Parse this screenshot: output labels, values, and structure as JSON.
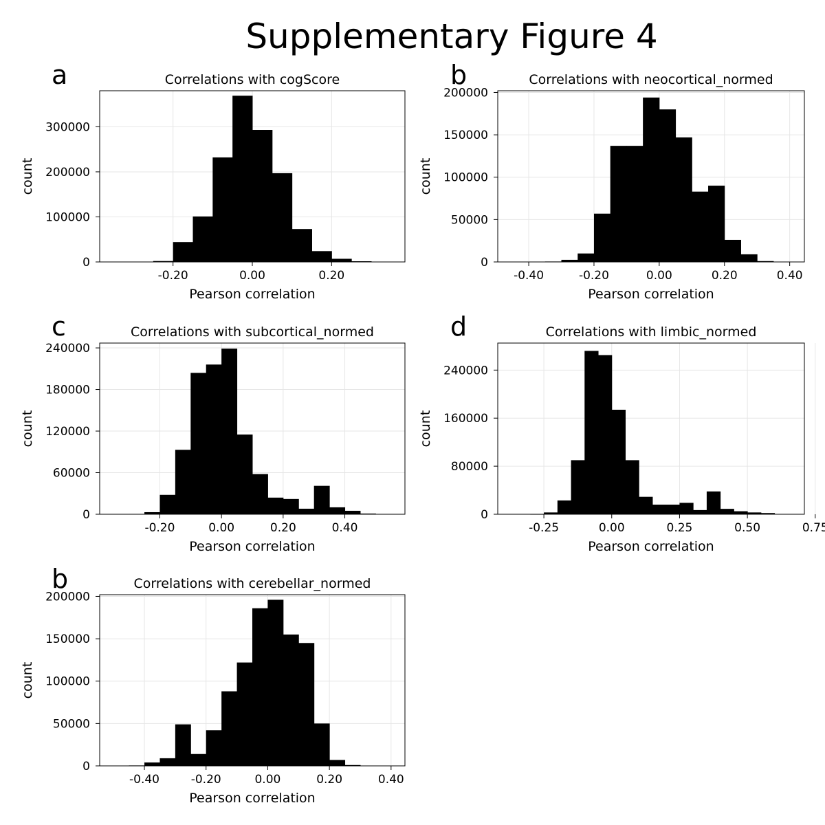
{
  "figure_title": "Supplementary Figure 4",
  "chart_data": [
    {
      "type": "bar",
      "letter": "a",
      "title": "Correlations with cogScore",
      "xlabel": "Pearson correlation",
      "ylabel": "count",
      "xlim": [
        -0.385,
        0.385
      ],
      "ylim": [
        0,
        380000
      ],
      "xticks": [
        -0.2,
        0.0,
        0.2
      ],
      "xtick_labels": [
        "-0.20",
        "0.00",
        "0.20"
      ],
      "yticks": [
        0,
        100000,
        200000,
        300000
      ],
      "ytick_labels": [
        "0",
        "100000",
        "200000",
        "300000"
      ],
      "grid": true,
      "bin_edges": [
        -0.25,
        -0.2,
        -0.15,
        -0.1,
        -0.05,
        0.0,
        0.05,
        0.1,
        0.15,
        0.2,
        0.25,
        0.3
      ],
      "values": [
        2000,
        44000,
        101000,
        232000,
        369000,
        293000,
        197000,
        73000,
        24000,
        7000,
        1500
      ]
    },
    {
      "type": "bar",
      "letter": "b",
      "title": "Correlations with neocortical_normed",
      "xlabel": "Pearson correlation",
      "ylabel": "count",
      "xlim": [
        -0.495,
        0.445
      ],
      "ylim": [
        0,
        202000
      ],
      "xticks": [
        -0.4,
        -0.2,
        0.0,
        0.2,
        0.4
      ],
      "xtick_labels": [
        "-0.40",
        "-0.20",
        "0.00",
        "0.20",
        "0.40"
      ],
      "yticks": [
        0,
        50000,
        100000,
        150000,
        200000
      ],
      "ytick_labels": [
        "0",
        "50000",
        "100000",
        "150000",
        "200000"
      ],
      "grid": true,
      "bin_edges": [
        -0.35,
        -0.3,
        -0.25,
        -0.2,
        -0.15,
        -0.1,
        -0.05,
        0.0,
        0.05,
        0.1,
        0.15,
        0.2,
        0.25,
        0.3,
        0.35
      ],
      "values": [
        500,
        2500,
        10000,
        57000,
        137000,
        137000,
        194000,
        180000,
        147000,
        83000,
        90000,
        26000,
        9000,
        1000
      ]
    },
    {
      "type": "bar",
      "letter": "c",
      "title": "Correlations with subcortical_normed",
      "xlabel": "Pearson correlation",
      "ylabel": "count",
      "xlim": [
        -0.395,
        0.595
      ],
      "ylim": [
        0,
        247000
      ],
      "xticks": [
        -0.2,
        0.0,
        0.2,
        0.4
      ],
      "xtick_labels": [
        "-0.20",
        "0.00",
        "0.20",
        "0.40"
      ],
      "yticks": [
        0,
        60000,
        120000,
        180000,
        240000
      ],
      "ytick_labels": [
        "0",
        "60000",
        "120000",
        "180000",
        "240000"
      ],
      "grid": true,
      "bin_edges": [
        -0.3,
        -0.25,
        -0.2,
        -0.15,
        -0.1,
        -0.05,
        0.0,
        0.05,
        0.1,
        0.15,
        0.2,
        0.25,
        0.3,
        0.35,
        0.4,
        0.45,
        0.5
      ],
      "values": [
        500,
        3000,
        28000,
        93000,
        204000,
        216000,
        239000,
        115000,
        58000,
        24000,
        22000,
        8000,
        41000,
        10000,
        5000,
        1000
      ]
    },
    {
      "type": "bar",
      "letter": "d",
      "title": "Correlations with limbic_normed",
      "xlabel": "Pearson correlation",
      "ylabel": "count",
      "xlim": [
        -0.42,
        0.71
      ],
      "ylim": [
        0,
        285000
      ],
      "xticks": [
        -0.25,
        0.0,
        0.25,
        0.5,
        0.75
      ],
      "xtick_labels": [
        "-0.25",
        "0.00",
        "0.25",
        "0.50",
        "0.75"
      ],
      "yticks": [
        0,
        80000,
        160000,
        240000
      ],
      "ytick_labels": [
        "0",
        "80000",
        "160000",
        "240000"
      ],
      "grid": true,
      "bin_edges": [
        -0.3,
        -0.25,
        -0.2,
        -0.15,
        -0.1,
        -0.05,
        0.0,
        0.05,
        0.1,
        0.15,
        0.2,
        0.25,
        0.3,
        0.35,
        0.4,
        0.45,
        0.5,
        0.55,
        0.6
      ],
      "values": [
        500,
        3000,
        23000,
        90000,
        272000,
        265000,
        174000,
        90000,
        29000,
        16000,
        16000,
        19000,
        7000,
        38000,
        9000,
        5000,
        3000,
        2000
      ]
    },
    {
      "type": "bar",
      "letter": "b",
      "title": "Correlations with cerebellar_normed",
      "xlabel": "Pearson correlation",
      "ylabel": "count",
      "xlim": [
        -0.545,
        0.445
      ],
      "ylim": [
        0,
        202000
      ],
      "xticks": [
        -0.4,
        -0.2,
        0.0,
        0.2,
        0.4
      ],
      "xtick_labels": [
        "-0.40",
        "-0.20",
        "0.00",
        "0.20",
        "0.40"
      ],
      "yticks": [
        0,
        50000,
        100000,
        150000,
        200000
      ],
      "ytick_labels": [
        "0",
        "50000",
        "100000",
        "150000",
        "200000"
      ],
      "grid": true,
      "bin_edges": [
        -0.45,
        -0.4,
        -0.35,
        -0.3,
        -0.25,
        -0.2,
        -0.15,
        -0.1,
        -0.05,
        0.0,
        0.05,
        0.1,
        0.15,
        0.2,
        0.25,
        0.3
      ],
      "values": [
        500,
        4000,
        9000,
        49000,
        14000,
        42000,
        88000,
        122000,
        186000,
        196000,
        155000,
        145000,
        50000,
        7000,
        1000
      ]
    }
  ]
}
